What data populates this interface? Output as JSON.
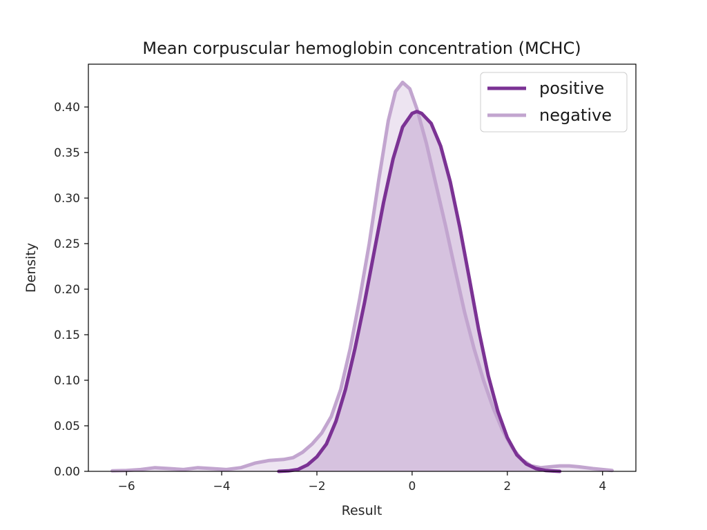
{
  "chart_data": {
    "type": "area",
    "title": "Mean corpuscular hemoglobin concentration (MCHC)",
    "xlabel": "Result",
    "ylabel": "Density",
    "xlim": [
      -6.8,
      4.7
    ],
    "ylim": [
      0.0,
      0.447
    ],
    "xticks": [
      -6,
      -4,
      -2,
      0,
      2,
      4
    ],
    "xtick_labels": [
      "−6",
      "−4",
      "−2",
      "0",
      "2",
      "4"
    ],
    "yticks": [
      0.0,
      0.05,
      0.1,
      0.15,
      0.2,
      0.25,
      0.3,
      0.35,
      0.4
    ],
    "ytick_labels": [
      "0.00",
      "0.05",
      "0.10",
      "0.15",
      "0.20",
      "0.25",
      "0.30",
      "0.35",
      "0.40"
    ],
    "legend_position": "top-right",
    "series": [
      {
        "name": "positive",
        "color": "#7b3294",
        "fill_color": "#c2a5cf",
        "x": [
          -2.8,
          -2.6,
          -2.4,
          -2.2,
          -2.0,
          -1.8,
          -1.6,
          -1.4,
          -1.2,
          -1.0,
          -0.8,
          -0.6,
          -0.4,
          -0.2,
          0.0,
          0.1,
          0.2,
          0.4,
          0.6,
          0.8,
          1.0,
          1.2,
          1.4,
          1.6,
          1.8,
          2.0,
          2.2,
          2.4,
          2.6,
          2.8,
          3.0,
          3.1
        ],
        "y": [
          0.0,
          0.0005,
          0.002,
          0.007,
          0.016,
          0.03,
          0.055,
          0.09,
          0.135,
          0.185,
          0.24,
          0.295,
          0.343,
          0.378,
          0.393,
          0.395,
          0.393,
          0.382,
          0.357,
          0.318,
          0.268,
          0.212,
          0.155,
          0.105,
          0.066,
          0.037,
          0.018,
          0.008,
          0.003,
          0.001,
          0.0003,
          0.0
        ]
      },
      {
        "name": "negative",
        "color": "#c2a5cf",
        "fill_color": "#c2a5cf",
        "x": [
          -6.3,
          -6.0,
          -5.7,
          -5.4,
          -5.1,
          -4.8,
          -4.5,
          -4.2,
          -3.9,
          -3.6,
          -3.3,
          -3.0,
          -2.7,
          -2.5,
          -2.3,
          -2.1,
          -1.9,
          -1.7,
          -1.5,
          -1.3,
          -1.1,
          -0.9,
          -0.7,
          -0.5,
          -0.35,
          -0.2,
          -0.05,
          0.1,
          0.3,
          0.5,
          0.7,
          0.9,
          1.1,
          1.3,
          1.5,
          1.7,
          1.9,
          2.1,
          2.3,
          2.5,
          2.7,
          2.9,
          3.1,
          3.3,
          3.5,
          3.8,
          4.2
        ],
        "y": [
          0.0005,
          0.001,
          0.002,
          0.004,
          0.003,
          0.002,
          0.004,
          0.003,
          0.002,
          0.004,
          0.009,
          0.012,
          0.013,
          0.015,
          0.021,
          0.03,
          0.042,
          0.06,
          0.09,
          0.135,
          0.19,
          0.25,
          0.32,
          0.385,
          0.417,
          0.427,
          0.42,
          0.398,
          0.36,
          0.315,
          0.27,
          0.222,
          0.175,
          0.135,
          0.1,
          0.07,
          0.045,
          0.026,
          0.013,
          0.006,
          0.004,
          0.005,
          0.006,
          0.006,
          0.005,
          0.003,
          0.001
        ]
      }
    ]
  }
}
